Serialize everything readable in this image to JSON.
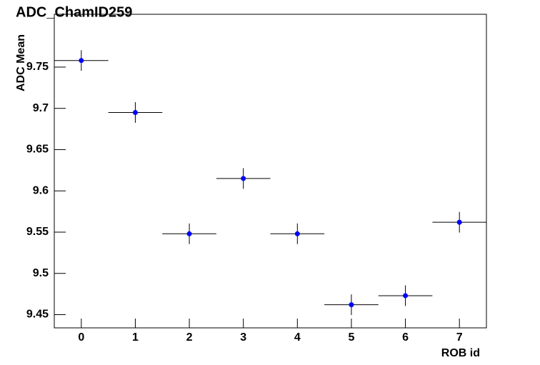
{
  "chart_data": {
    "type": "scatter",
    "title": "ADC_ChamID259",
    "x_label": "ROB id",
    "y_label": "ADC Mean",
    "x": [
      0,
      1,
      2,
      3,
      4,
      5,
      6,
      7
    ],
    "x_errors": [
      0.5,
      0.5,
      0.5,
      0.5,
      0.5,
      0.5,
      0.5,
      0.5
    ],
    "series": [
      {
        "color": "#0000ff",
        "values": [
          9.758,
          9.695,
          9.548,
          9.615,
          9.548,
          9.462,
          9.473,
          9.562
        ],
        "errors": [
          0.0125,
          0.0125,
          0.0125,
          0.0125,
          0.0125,
          0.0125,
          0.0125,
          0.0125
        ]
      }
    ],
    "xlim": [
      -0.5,
      7.5
    ],
    "ylim": [
      9.434,
      9.814
    ],
    "xticks": [
      0,
      1,
      2,
      3,
      4,
      5,
      6,
      7
    ],
    "yticks": [
      9.45,
      9.5,
      9.55,
      9.6,
      9.65,
      9.7,
      9.75
    ],
    "grid": false
  }
}
